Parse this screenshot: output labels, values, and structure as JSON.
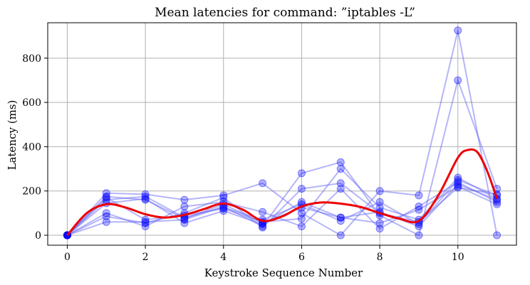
{
  "chart_data": {
    "type": "line",
    "title": "Mean latencies for command: ”iptables -L”",
    "xlabel": "Keystroke Sequence Number",
    "ylabel": "Latency (ms)",
    "xlim": [
      -0.5,
      11.5
    ],
    "ylim": [
      -45,
      960
    ],
    "x_ticks": [
      0,
      2,
      4,
      6,
      8,
      10
    ],
    "y_ticks": [
      0,
      200,
      400,
      600,
      800
    ],
    "grid": true,
    "x": [
      0,
      1,
      2,
      3,
      4,
      5,
      6,
      7,
      8,
      9,
      10,
      11
    ],
    "series": [
      {
        "values": [
          0,
          190,
          185,
          160,
          180,
          235,
          100,
          0,
          200,
          180,
          925,
          0
        ]
      },
      {
        "values": [
          0,
          60,
          60,
          70,
          130,
          40,
          280,
          330,
          90,
          0,
          700,
          210
        ]
      },
      {
        "values": [
          0,
          100,
          40,
          130,
          150,
          105,
          40,
          210,
          30,
          130,
          240,
          150
        ]
      },
      {
        "values": [
          0,
          170,
          70,
          90,
          120,
          60,
          75,
          300,
          125,
          70,
          260,
          165
        ]
      },
      {
        "values": [
          0,
          145,
          165,
          55,
          110,
          50,
          150,
          80,
          55,
          115,
          220,
          140
        ]
      },
      {
        "values": [
          0,
          85,
          55,
          100,
          170,
          35,
          210,
          235,
          100,
          60,
          215,
          185
        ]
      },
      {
        "values": [
          0,
          160,
          175,
          80,
          125,
          70,
          140,
          65,
          150,
          50,
          250,
          180
        ]
      },
      {
        "values": [
          0,
          175,
          160,
          75,
          140,
          55,
          125,
          80,
          105,
          40,
          230,
          160
        ]
      }
    ],
    "mean_curve": {
      "x": [
        0,
        0.5,
        1,
        1.5,
        2,
        2.5,
        3,
        3.5,
        4,
        4.5,
        5,
        5.5,
        6,
        6.5,
        7,
        7.5,
        8,
        8.5,
        9,
        9.5,
        10,
        10.25,
        10.5,
        10.75,
        11
      ],
      "values": [
        0,
        100,
        140,
        125,
        95,
        80,
        92,
        118,
        143,
        115,
        65,
        85,
        130,
        148,
        143,
        128,
        100,
        75,
        65,
        180,
        350,
        385,
        375,
        290,
        165
      ]
    },
    "colors": {
      "points": "#0000ff",
      "trial_lines": "#6b6bf5",
      "mean": "#ee0000"
    }
  }
}
